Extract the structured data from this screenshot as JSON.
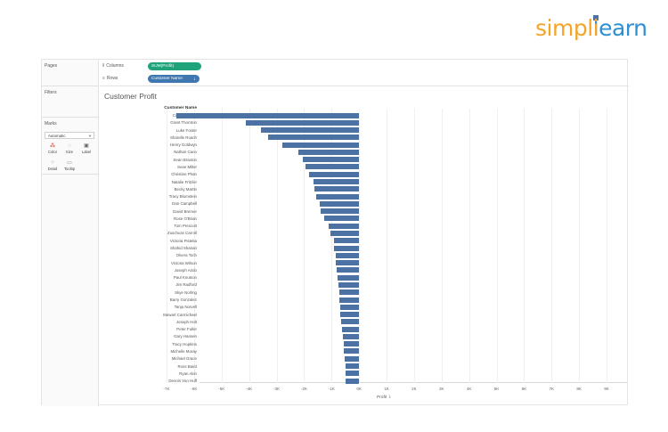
{
  "logo": {
    "part1": "simpl",
    "bar": "i",
    "part2": "learn"
  },
  "sidebar": {
    "pages": "Pages",
    "filters": "Filters",
    "marks": "Marks",
    "marks_type": "Automatic",
    "buttons": {
      "color": "Color",
      "size": "Size",
      "label": "Label",
      "detail": "Detail",
      "tooltip": "Tooltip"
    }
  },
  "shelves": {
    "columns_label": "Columns",
    "columns_pill": "SUM(Profit)",
    "rows_label": "Rows",
    "rows_pill": "Customer Name"
  },
  "chart_data": {
    "type": "bar",
    "orientation": "horizontal",
    "title": "Customer Profit",
    "category_header": "Customer Name",
    "xlabel": "Profit",
    "xlim": [
      -7000,
      9000
    ],
    "grid": true,
    "tick_labels": [
      "-7K",
      "-6K",
      "-5K",
      "-4K",
      "-3K",
      "-2K",
      "-1K",
      "0K",
      "1K",
      "2K",
      "3K",
      "4K",
      "5K",
      "6K",
      "7K",
      "8K",
      "9K"
    ],
    "categories": [
      "Cindy Stewart",
      "Grant Thornton",
      "Luke Foster",
      "Sharelle Roach",
      "Henry Goldwyn",
      "Nathan Cano",
      "Sean Braxton",
      "Sean Miller",
      "Christine Phan",
      "Natalie Fritzler",
      "Becky Martin",
      "Tracy Blumstein",
      "Dan Campbell",
      "David Bremer",
      "Rose O'Brian",
      "Tom Prescott",
      "Zuschuss Carroll",
      "Victoria Pisteka",
      "Shahid Shariari",
      "Olvera Toch",
      "Victoria Wilson",
      "Joseph Airdo",
      "Paul Knutson",
      "Jim Radford",
      "Skye Norling",
      "Barry Gonzalez",
      "Tanja Norvell",
      "Stewart Carmichael",
      "Joseph Holt",
      "Peter Fuller",
      "Gary Hansen",
      "Tracy Hopkins",
      "Michelle Moray",
      "Michael Grace",
      "Ross Baird",
      "Ryan Akin",
      "Dennis Von Huff"
    ],
    "values": [
      -6630,
      -4110,
      -3580,
      -3320,
      -2800,
      -2220,
      -2040,
      -1950,
      -1830,
      -1640,
      -1620,
      -1550,
      -1430,
      -1410,
      -1280,
      -1090,
      -1050,
      -900,
      -900,
      -860,
      -830,
      -800,
      -780,
      -740,
      -710,
      -710,
      -680,
      -680,
      -650,
      -630,
      -600,
      -570,
      -540,
      -520,
      -490,
      -480,
      -480
    ]
  }
}
